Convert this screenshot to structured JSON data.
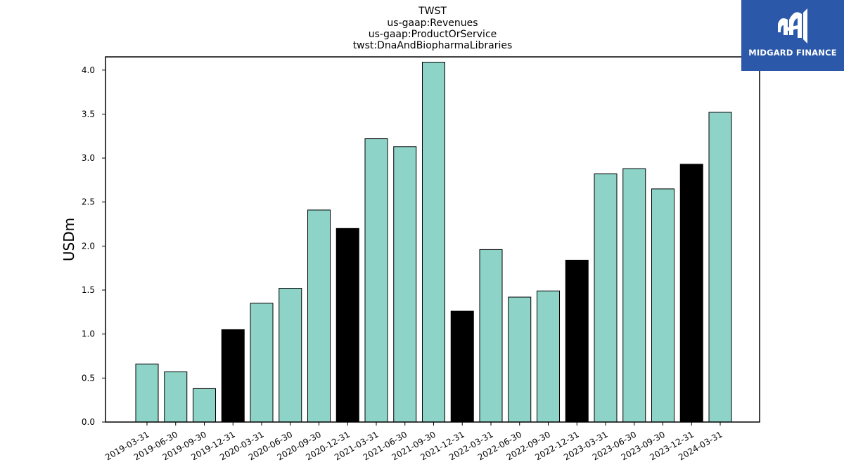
{
  "chart_data": {
    "type": "bar",
    "title_lines": [
      "TWST",
      "us-gaap:Revenues",
      "us-gaap:ProductOrService",
      "twst:DnaAndBiopharmaLibraries"
    ],
    "xlabel": "",
    "ylabel": "USDm",
    "ylim": [
      0,
      4.15
    ],
    "yticks": [
      "0.0",
      "0.5",
      "1.0",
      "1.5",
      "2.0",
      "2.5",
      "3.0",
      "3.5",
      "4.0"
    ],
    "categories": [
      "2019-03-31",
      "2019-06-30",
      "2019-09-30",
      "2019-12-31",
      "2020-03-31",
      "2020-06-30",
      "2020-09-30",
      "2020-12-31",
      "2021-03-31",
      "2021-06-30",
      "2021-09-30",
      "2021-12-31",
      "2022-03-31",
      "2022-06-30",
      "2022-09-30",
      "2022-12-31",
      "2023-03-31",
      "2023-06-30",
      "2023-09-30",
      "2023-12-31",
      "2024-03-31"
    ],
    "values": [
      0.66,
      0.57,
      0.38,
      1.05,
      1.35,
      1.52,
      2.41,
      2.2,
      3.22,
      3.13,
      4.09,
      1.26,
      1.96,
      1.42,
      1.49,
      1.84,
      2.82,
      2.88,
      2.65,
      2.93,
      3.52
    ],
    "colors": {
      "quarter": "#8dd3c7",
      "year_end": "#000000"
    },
    "highlight_categories": [
      "2019-12-31",
      "2020-12-31",
      "2021-12-31",
      "2022-12-31",
      "2023-12-31"
    ],
    "grid": false
  },
  "logo": {
    "text": "MIDGARD FINANCE",
    "background": "#2b58a8"
  }
}
